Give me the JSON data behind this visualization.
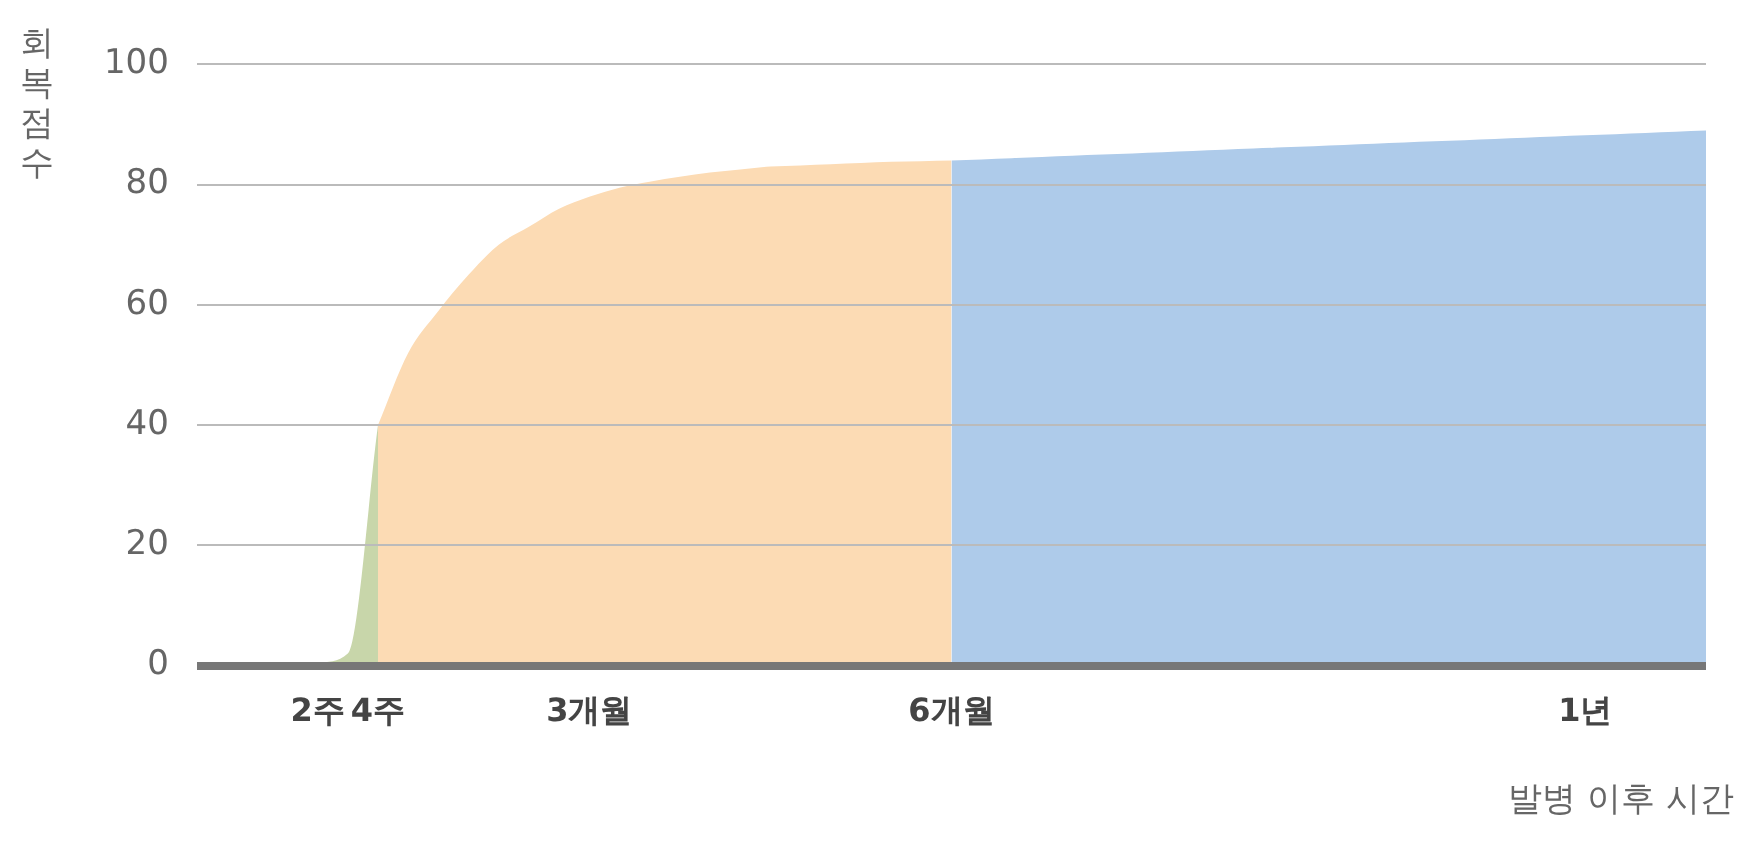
{
  "chart_data": {
    "type": "area",
    "ylabel": "회복점수",
    "xlabel": "발병 이후 시간",
    "categories": [
      null,
      null,
      null,
      null,
      "2주",
      null,
      "4주",
      null,
      null,
      null,
      null,
      null,
      null,
      "3개월",
      null,
      null,
      null,
      null,
      null,
      null,
      null,
      null,
      null,
      null,
      null,
      "6개월",
      null,
      null,
      null,
      null,
      null,
      null,
      null,
      null,
      null,
      null,
      null,
      null,
      null,
      null,
      null,
      null,
      null,
      null,
      null,
      null,
      "1년",
      null,
      null,
      null,
      null
    ],
    "series": [
      {
        "color": "#c8d6aa",
        "values": [
          0,
          0,
          0.1,
          0.2,
          0.5,
          2,
          40,
          null,
          null,
          null,
          null,
          null,
          null,
          null,
          null,
          null,
          null,
          null,
          null,
          null,
          null,
          null,
          null,
          null,
          null,
          null,
          null,
          null,
          null,
          null,
          null,
          null,
          null,
          null,
          null,
          null,
          null,
          null,
          null,
          null,
          null,
          null,
          null,
          null,
          null,
          null,
          null,
          null,
          null,
          null,
          null
        ]
      },
      {
        "color": "#fcdbb4",
        "values": [
          null,
          null,
          null,
          null,
          null,
          null,
          40,
          52,
          59,
          65,
          70,
          73,
          76,
          78,
          79.5,
          80.5,
          81.3,
          82,
          82.5,
          83,
          83.2,
          83.4,
          83.6,
          83.8,
          83.9,
          84,
          null,
          null,
          null,
          null,
          null,
          null,
          null,
          null,
          null,
          null,
          null,
          null,
          null,
          null,
          null,
          null,
          null,
          null,
          null,
          null,
          null,
          null,
          null,
          null,
          null
        ]
      },
      {
        "color": "#aecbea",
        "values": [
          null,
          null,
          null,
          null,
          null,
          null,
          null,
          null,
          null,
          null,
          null,
          null,
          null,
          null,
          null,
          null,
          null,
          null,
          null,
          null,
          null,
          null,
          null,
          null,
          null,
          84,
          84.2,
          84.4,
          84.6,
          84.8,
          85,
          85.2,
          85.4,
          85.6,
          85.8,
          86,
          86.2,
          86.4,
          86.6,
          86.8,
          87,
          87.2,
          87.4,
          87.6,
          87.8,
          88,
          88.2,
          88.4,
          88.6,
          88.8,
          89
        ]
      }
    ],
    "ylim": [
      0,
      100
    ],
    "yticks": [
      0,
      20,
      40,
      60,
      80,
      100
    ],
    "grid": "y",
    "marker": "none"
  }
}
